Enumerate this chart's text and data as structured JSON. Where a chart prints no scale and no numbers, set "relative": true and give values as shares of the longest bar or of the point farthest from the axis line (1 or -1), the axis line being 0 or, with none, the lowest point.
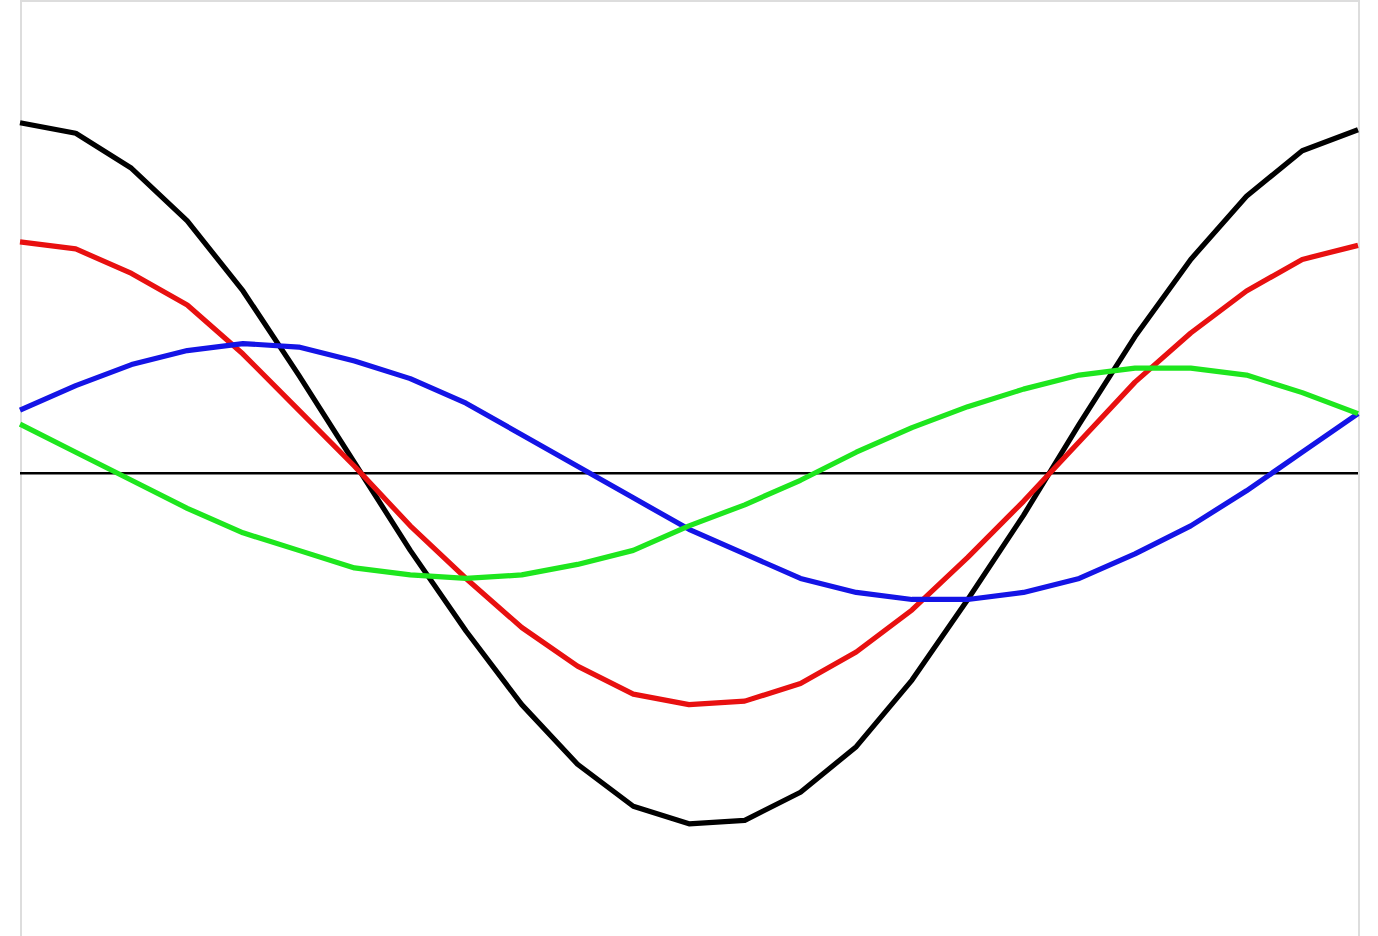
{
  "chart_data": {
    "type": "line",
    "relative": true,
    "grid": false,
    "legend": false,
    "marker": "none",
    "line_style": "solid",
    "categories": [
      null,
      null,
      null,
      null,
      null,
      null,
      null,
      null,
      null,
      null,
      null,
      null,
      null,
      null,
      null,
      null,
      null,
      null,
      null,
      null,
      null,
      null,
      null,
      null,
      null
    ],
    "series": [
      {
        "color": "#000000",
        "values": [
          1,
          0.97,
          0.87,
          0.72,
          0.52,
          0.28,
          0.03,
          -0.22,
          -0.45,
          -0.66,
          -0.83,
          -0.95,
          -1,
          -0.99,
          -0.91,
          -0.78,
          -0.59,
          -0.36,
          -0.12,
          0.14,
          0.39,
          0.61,
          0.79,
          0.92,
          0.98
        ]
      },
      {
        "color": "#e81010",
        "values": [
          0.66,
          0.64,
          0.57,
          0.48,
          0.34,
          0.18,
          0.02,
          -0.15,
          -0.3,
          -0.44,
          -0.55,
          -0.63,
          -0.66,
          -0.65,
          -0.6,
          -0.51,
          -0.39,
          -0.24,
          -0.08,
          0.09,
          0.26,
          0.4,
          0.52,
          0.61,
          0.65
        ]
      },
      {
        "color": "#1414e6",
        "values": [
          0.18,
          0.25,
          0.31,
          0.35,
          0.37,
          0.36,
          0.32,
          0.27,
          0.2,
          0.11,
          0.02,
          -0.07,
          -0.16,
          -0.23,
          -0.3,
          -0.34,
          -0.36,
          -0.36,
          -0.34,
          -0.3,
          -0.23,
          -0.15,
          -0.05,
          0.06,
          0.17
        ]
      },
      {
        "color": "#1ee61e",
        "values": [
          0.14,
          0.06,
          -0.02,
          -0.1,
          -0.17,
          -0.22,
          -0.27,
          -0.29,
          -0.3,
          -0.29,
          -0.26,
          -0.22,
          -0.15,
          -0.09,
          -0.02,
          0.06,
          0.13,
          0.19,
          0.24,
          0.28,
          0.3,
          0.3,
          0.28,
          0.23,
          0.17
        ]
      }
    ]
  }
}
